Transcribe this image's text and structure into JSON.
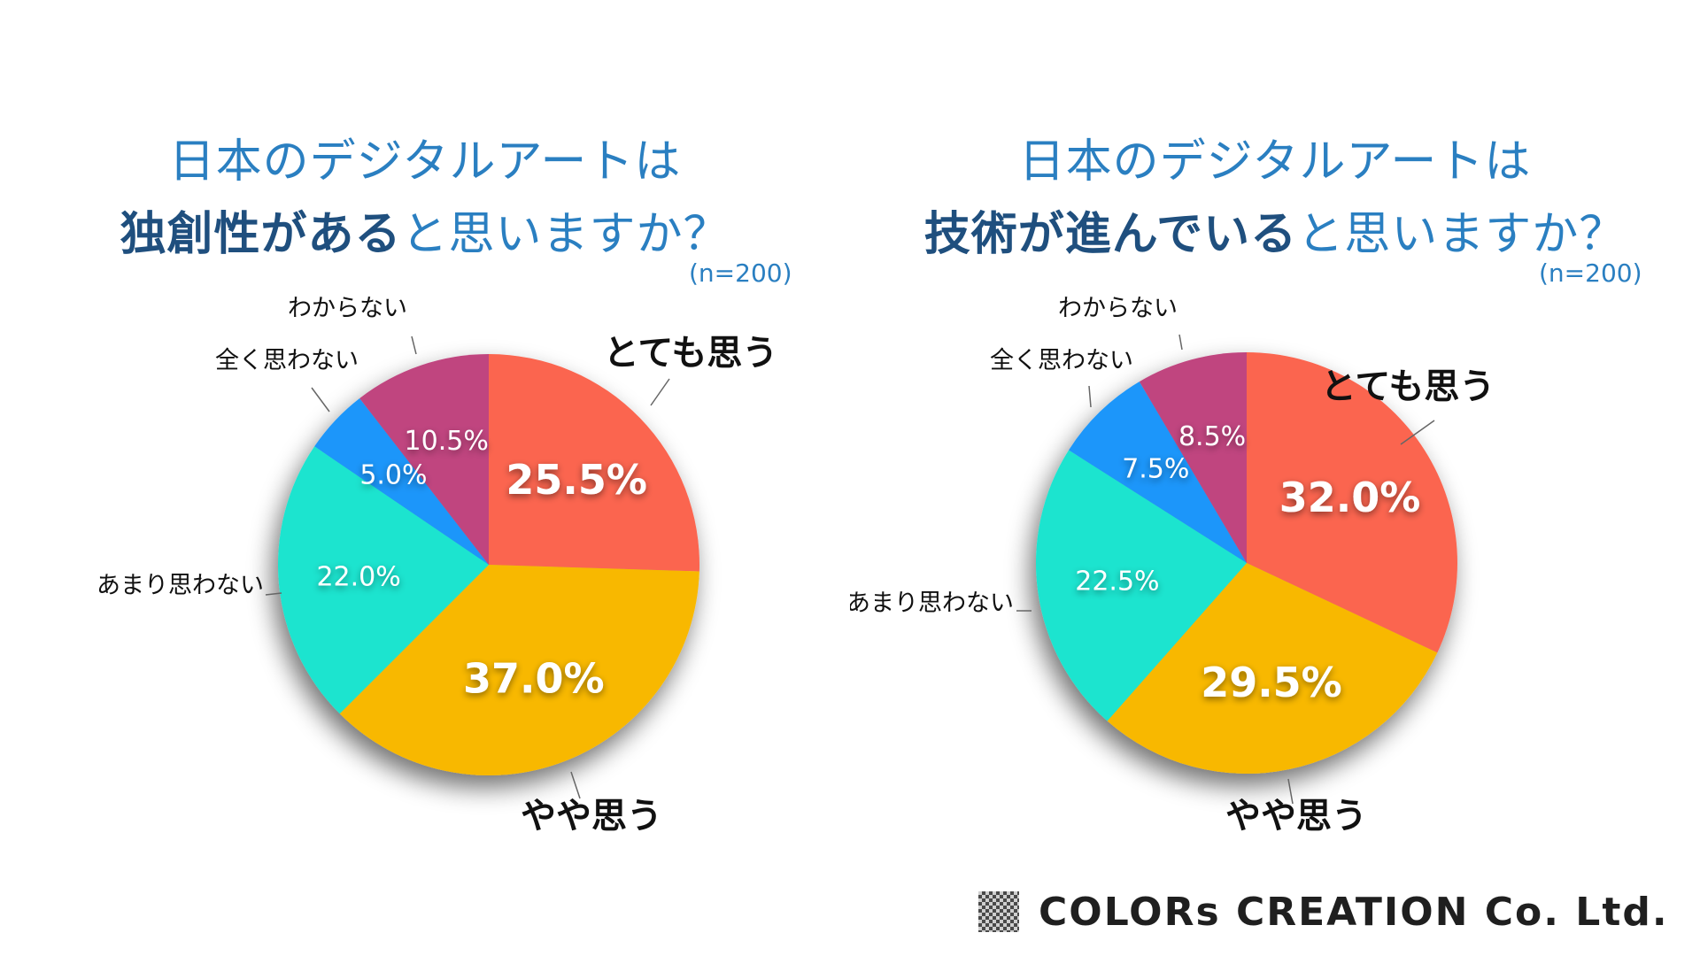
{
  "chart_data": [
    {
      "type": "pie",
      "title_line1": "日本のデジタルアートは",
      "title_line2_bold": "独創性がある",
      "title_line2_rest": "と思いますか？",
      "sample": "(n=200)",
      "slices": [
        {
          "label": "とても思う",
          "value": 25.5,
          "display": "25.5%",
          "color": "#fb6550",
          "emphasis": true
        },
        {
          "label": "やや思う",
          "value": 37.0,
          "display": "37.0%",
          "color": "#f8b800",
          "emphasis": true
        },
        {
          "label": "あまり思わない",
          "value": 22.0,
          "display": "22.0%",
          "color": "#1ee4cf",
          "emphasis": false
        },
        {
          "label": "全く思わない",
          "value": 5.0,
          "display": "5.0%",
          "color": "#1a96fa",
          "emphasis": false
        },
        {
          "label": "わからない",
          "value": 10.5,
          "display": "10.5%",
          "color": "#c0457f",
          "emphasis": false
        }
      ]
    },
    {
      "type": "pie",
      "title_line1": "日本のデジタルアートは",
      "title_line2_bold": "技術が進んでいる",
      "title_line2_rest": "と思いますか？",
      "sample": "(n=200)",
      "slices": [
        {
          "label": "とても思う",
          "value": 32.0,
          "display": "32.0%",
          "color": "#fb6550",
          "emphasis": true
        },
        {
          "label": "やや思う",
          "value": 29.5,
          "display": "29.5%",
          "color": "#f8b800",
          "emphasis": true
        },
        {
          "label": "あまり思わない",
          "value": 22.5,
          "display": "22.5%",
          "color": "#1ee4cf",
          "emphasis": false
        },
        {
          "label": "全く思わない",
          "value": 7.5,
          "display": "7.5%",
          "color": "#1a96fa",
          "emphasis": false
        },
        {
          "label": "わからない",
          "value": 8.5,
          "display": "8.5%",
          "color": "#c0457f",
          "emphasis": false
        }
      ]
    }
  ],
  "footer": {
    "company": "COLORs CREATION Co. Ltd."
  }
}
